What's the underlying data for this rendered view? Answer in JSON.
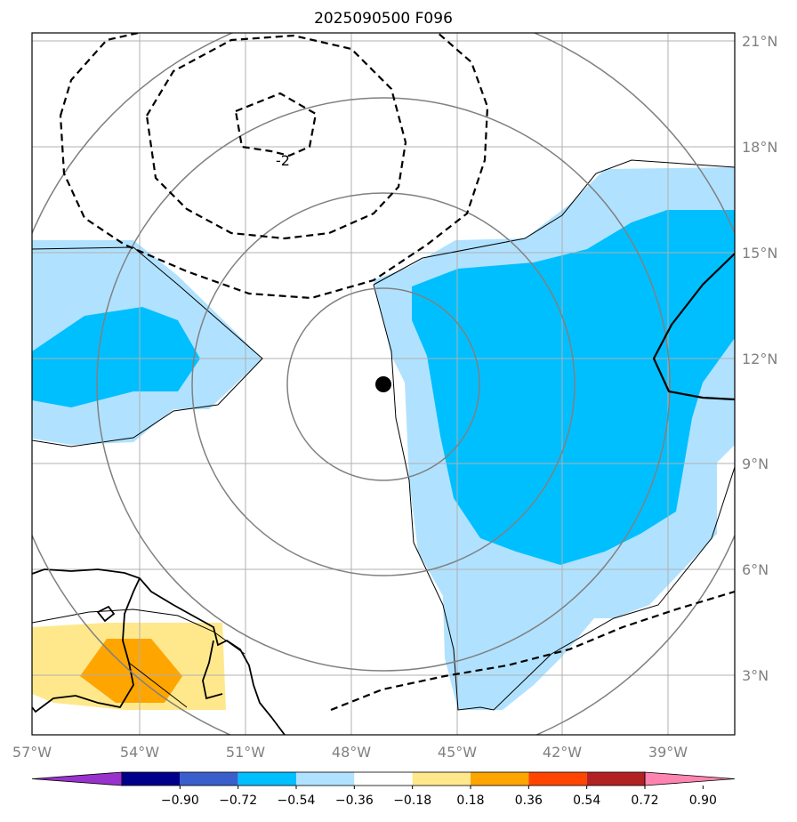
{
  "title": "2025090500 F096",
  "map": {
    "lon_labels": [
      "57°W",
      "54°W",
      "51°W",
      "48°W",
      "45°W",
      "42°W",
      "39°W"
    ],
    "lat_labels": [
      "21°N",
      "18°N",
      "15°N",
      "12°N",
      "9°N",
      "6°N",
      "3°N"
    ],
    "center_marker": "storm-center-dot",
    "contour_label": "-2"
  },
  "colorbar": {
    "tick_labels": [
      "−0.90",
      "−0.72",
      "−0.54",
      "−0.36",
      "−0.18",
      "0.18",
      "0.36",
      "0.54",
      "0.72",
      "0.90"
    ],
    "colors": [
      "#9932CC",
      "#00008B",
      "#3A5FCD",
      "#00BFFF",
      "#B0E2FF",
      "#FFFFFF",
      "#FFE88C",
      "#FFA500",
      "#FF4500",
      "#B22222",
      "#FF85B0"
    ]
  },
  "colors": {
    "light_blue": "#B0E2FF",
    "mid_blue": "#00BFFF",
    "light_yellow": "#FFE88C",
    "orange": "#FFA500",
    "grid": "#B0B0B0",
    "range_rings": "#808080"
  }
}
